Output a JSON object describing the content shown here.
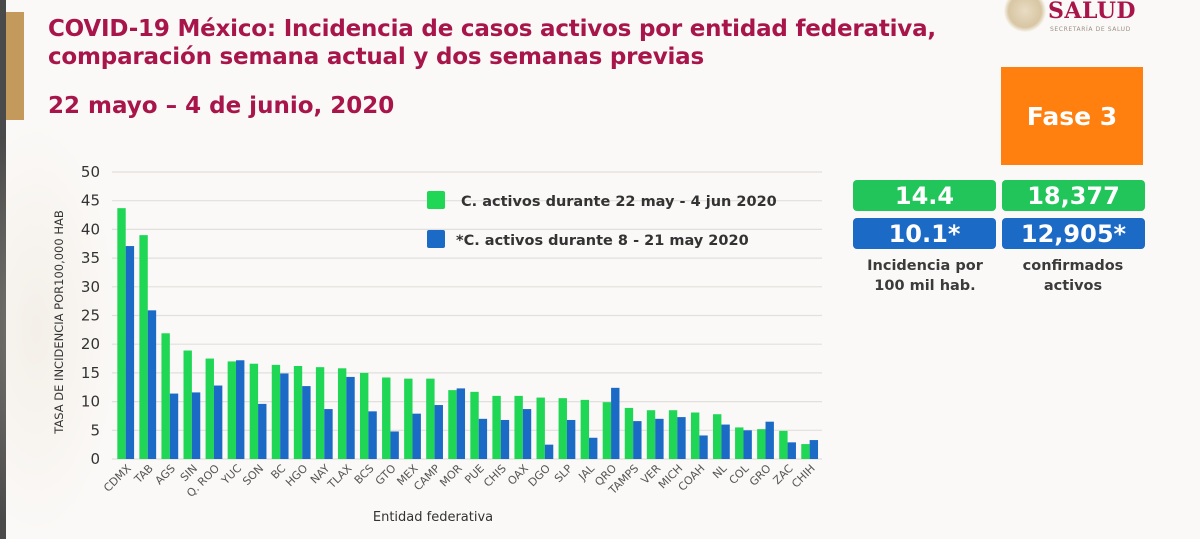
{
  "header": {
    "title_line1": "COVID-19 México: Incidencia de casos activos por entidad federativa,",
    "title_line2": "comparación semana actual y dos semanas previas",
    "subtitle": "22 mayo – 4 de junio, 2020"
  },
  "logo": {
    "name": "SALUD",
    "subtitle": "SECRETARÍA DE SALUD"
  },
  "phase": {
    "label": "Fase 3",
    "color": "#ff7f0f"
  },
  "stats": {
    "incidence_current": "14.4",
    "incidence_previous": "10.1*",
    "incidence_label_line1": "Incidencia por",
    "incidence_label_line2": "100 mil hab.",
    "active_current": "18,377",
    "active_previous": "12,905*",
    "active_label_line1": "confirmados",
    "active_label_line2": "activos"
  },
  "colors": {
    "current": "#1fd655",
    "previous": "#1b6ac6",
    "title": "#a8154a"
  },
  "chart_data": {
    "type": "bar",
    "title": "",
    "xlabel": "Entidad federativa",
    "ylabel": "TASA DE INCIDENCIA  POR100,000 HAB",
    "ylim": [
      0,
      50
    ],
    "yticks": [
      "0",
      "5",
      "10",
      "15",
      "20",
      "25",
      "30",
      "35",
      "40",
      "45",
      "50"
    ],
    "grid": true,
    "legend_position": "top-center",
    "categories": [
      "CDMX",
      "TAB",
      "AGS",
      "SIN",
      "Q. ROO",
      "YUC",
      "SON",
      "BC",
      "HGO",
      "NAY",
      "TLAX",
      "BCS",
      "GTO",
      "MEX",
      "CAMP",
      "MOR",
      "PUE",
      "CHIS",
      "OAX",
      "DGO",
      "SLP",
      "JAL",
      "QRO",
      "TAMPS",
      "VER",
      "MICH",
      "COAH",
      "NL",
      "COL",
      "GRO",
      "ZAC",
      "CHIH"
    ],
    "series": [
      {
        "name": "C. activos durante 22 may - 4 jun 2020",
        "values": [
          43.7,
          39.0,
          21.9,
          18.9,
          17.5,
          17.0,
          16.6,
          16.4,
          16.2,
          16.0,
          15.8,
          15.0,
          14.2,
          14.0,
          14.0,
          12.0,
          11.7,
          11.0,
          11.0,
          10.7,
          10.6,
          10.3,
          9.9,
          8.9,
          8.5,
          8.5,
          8.1,
          7.8,
          5.5,
          5.2,
          4.9,
          2.6
        ]
      },
      {
        "name": "*C. activos durante  8 - 21 may 2020",
        "values": [
          37.1,
          25.9,
          11.4,
          11.6,
          12.8,
          17.2,
          9.6,
          14.9,
          12.7,
          8.7,
          14.3,
          8.3,
          4.8,
          7.9,
          9.4,
          12.3,
          7.0,
          6.8,
          8.7,
          2.5,
          6.8,
          3.7,
          12.4,
          6.6,
          7.0,
          7.3,
          4.1,
          6.0,
          5.0,
          6.5,
          2.9,
          3.3
        ]
      }
    ]
  }
}
